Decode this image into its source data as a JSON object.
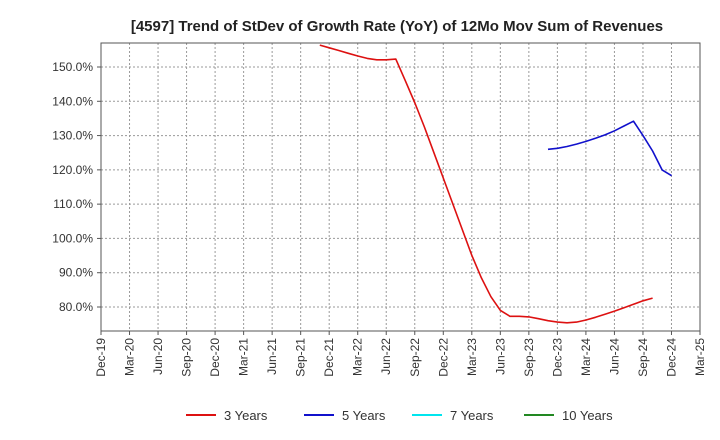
{
  "chart_data": {
    "type": "line",
    "title": "[4597]  Trend of StDev of Growth Rate (YoY) of 12Mo Mov Sum of Revenues",
    "xlabel": "",
    "ylabel": "",
    "ylim": [
      73,
      157
    ],
    "y_ticks": [
      80,
      90,
      100,
      110,
      120,
      130,
      140,
      150
    ],
    "y_tick_labels": [
      "80.0%",
      "90.0%",
      "100.0%",
      "110.0%",
      "120.0%",
      "130.0%",
      "140.0%",
      "150.0%"
    ],
    "x_tick_labels": [
      "Dec-19",
      "Mar-20",
      "Jun-20",
      "Sep-20",
      "Dec-20",
      "Mar-21",
      "Jun-21",
      "Sep-21",
      "Dec-21",
      "Mar-22",
      "Jun-22",
      "Sep-22",
      "Dec-22",
      "Mar-23",
      "Jun-23",
      "Sep-23",
      "Dec-23",
      "Mar-24",
      "Jun-24",
      "Sep-24",
      "Dec-24",
      "Mar-25"
    ],
    "grid": true,
    "legend_position": "bottom",
    "series": [
      {
        "name": "3 Years",
        "color": "#dd1111",
        "start_index": 7.67,
        "values": [
          156.4,
          155.6,
          154.8,
          154.0,
          153.2,
          152.5,
          152.1,
          152.1,
          152.3,
          146.0,
          139.5,
          132.5,
          125.0,
          117.5,
          110.0,
          102.5,
          95.0,
          88.5,
          83.0,
          79.0,
          77.3,
          77.3,
          77.1,
          76.6,
          76.0,
          75.6,
          75.4,
          75.6,
          76.2,
          77.0,
          77.9,
          78.8,
          79.8,
          80.8,
          81.8,
          82.6
        ]
      },
      {
        "name": "5 Years",
        "color": "#1111cc",
        "start_index": 15.67,
        "values": [
          126.0,
          126.3,
          126.8,
          127.5,
          128.3,
          129.2,
          130.2,
          131.4,
          132.8,
          134.2,
          130.0,
          125.5,
          120.0,
          118.3
        ]
      },
      {
        "name": "7 Years",
        "color": "#00e5ee",
        "start_index": null,
        "values": []
      },
      {
        "name": "10 Years",
        "color": "#228822",
        "start_index": null,
        "values": []
      }
    ]
  }
}
